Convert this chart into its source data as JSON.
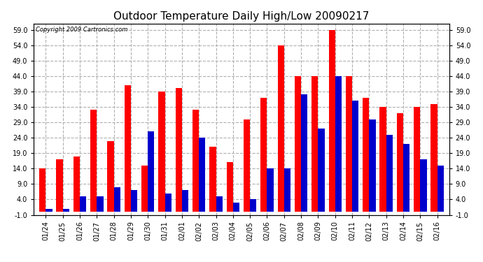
{
  "title": "Outdoor Temperature Daily High/Low 20090217",
  "copyright": "Copyright 2009 Cartronics.com",
  "dates": [
    "01/24",
    "01/25",
    "01/26",
    "01/27",
    "01/28",
    "01/29",
    "01/30",
    "01/31",
    "02/01",
    "02/02",
    "02/03",
    "02/04",
    "02/05",
    "02/06",
    "02/07",
    "02/08",
    "02/09",
    "02/10",
    "02/11",
    "02/12",
    "02/13",
    "02/14",
    "02/15",
    "02/16"
  ],
  "highs": [
    14,
    17,
    18,
    33,
    23,
    41,
    15,
    39,
    40,
    33,
    21,
    16,
    30,
    37,
    54,
    44,
    44,
    59,
    44,
    37,
    34,
    32,
    34,
    35
  ],
  "lows": [
    1,
    1,
    5,
    5,
    8,
    7,
    26,
    6,
    7,
    24,
    5,
    3,
    4,
    14,
    14,
    38,
    27,
    44,
    36,
    30,
    25,
    22,
    17,
    15
  ],
  "high_color": "#ff0000",
  "low_color": "#0000cc",
  "ylim_min": -1,
  "ylim_max": 61,
  "yticks": [
    -1,
    4,
    9,
    14,
    19,
    24,
    29,
    34,
    39,
    44,
    49,
    54,
    59
  ],
  "ytick_labels": [
    "-1.0",
    "4.0",
    "9.0",
    "14.0",
    "19.0",
    "24.0",
    "29.0",
    "34.0",
    "39.0",
    "44.0",
    "49.0",
    "54.0",
    "59.0"
  ],
  "bg_color": "#ffffff",
  "grid_color": "#b0b0b0",
  "bar_width": 0.38,
  "title_fontsize": 11,
  "tick_fontsize": 7,
  "copyright_fontsize": 6
}
